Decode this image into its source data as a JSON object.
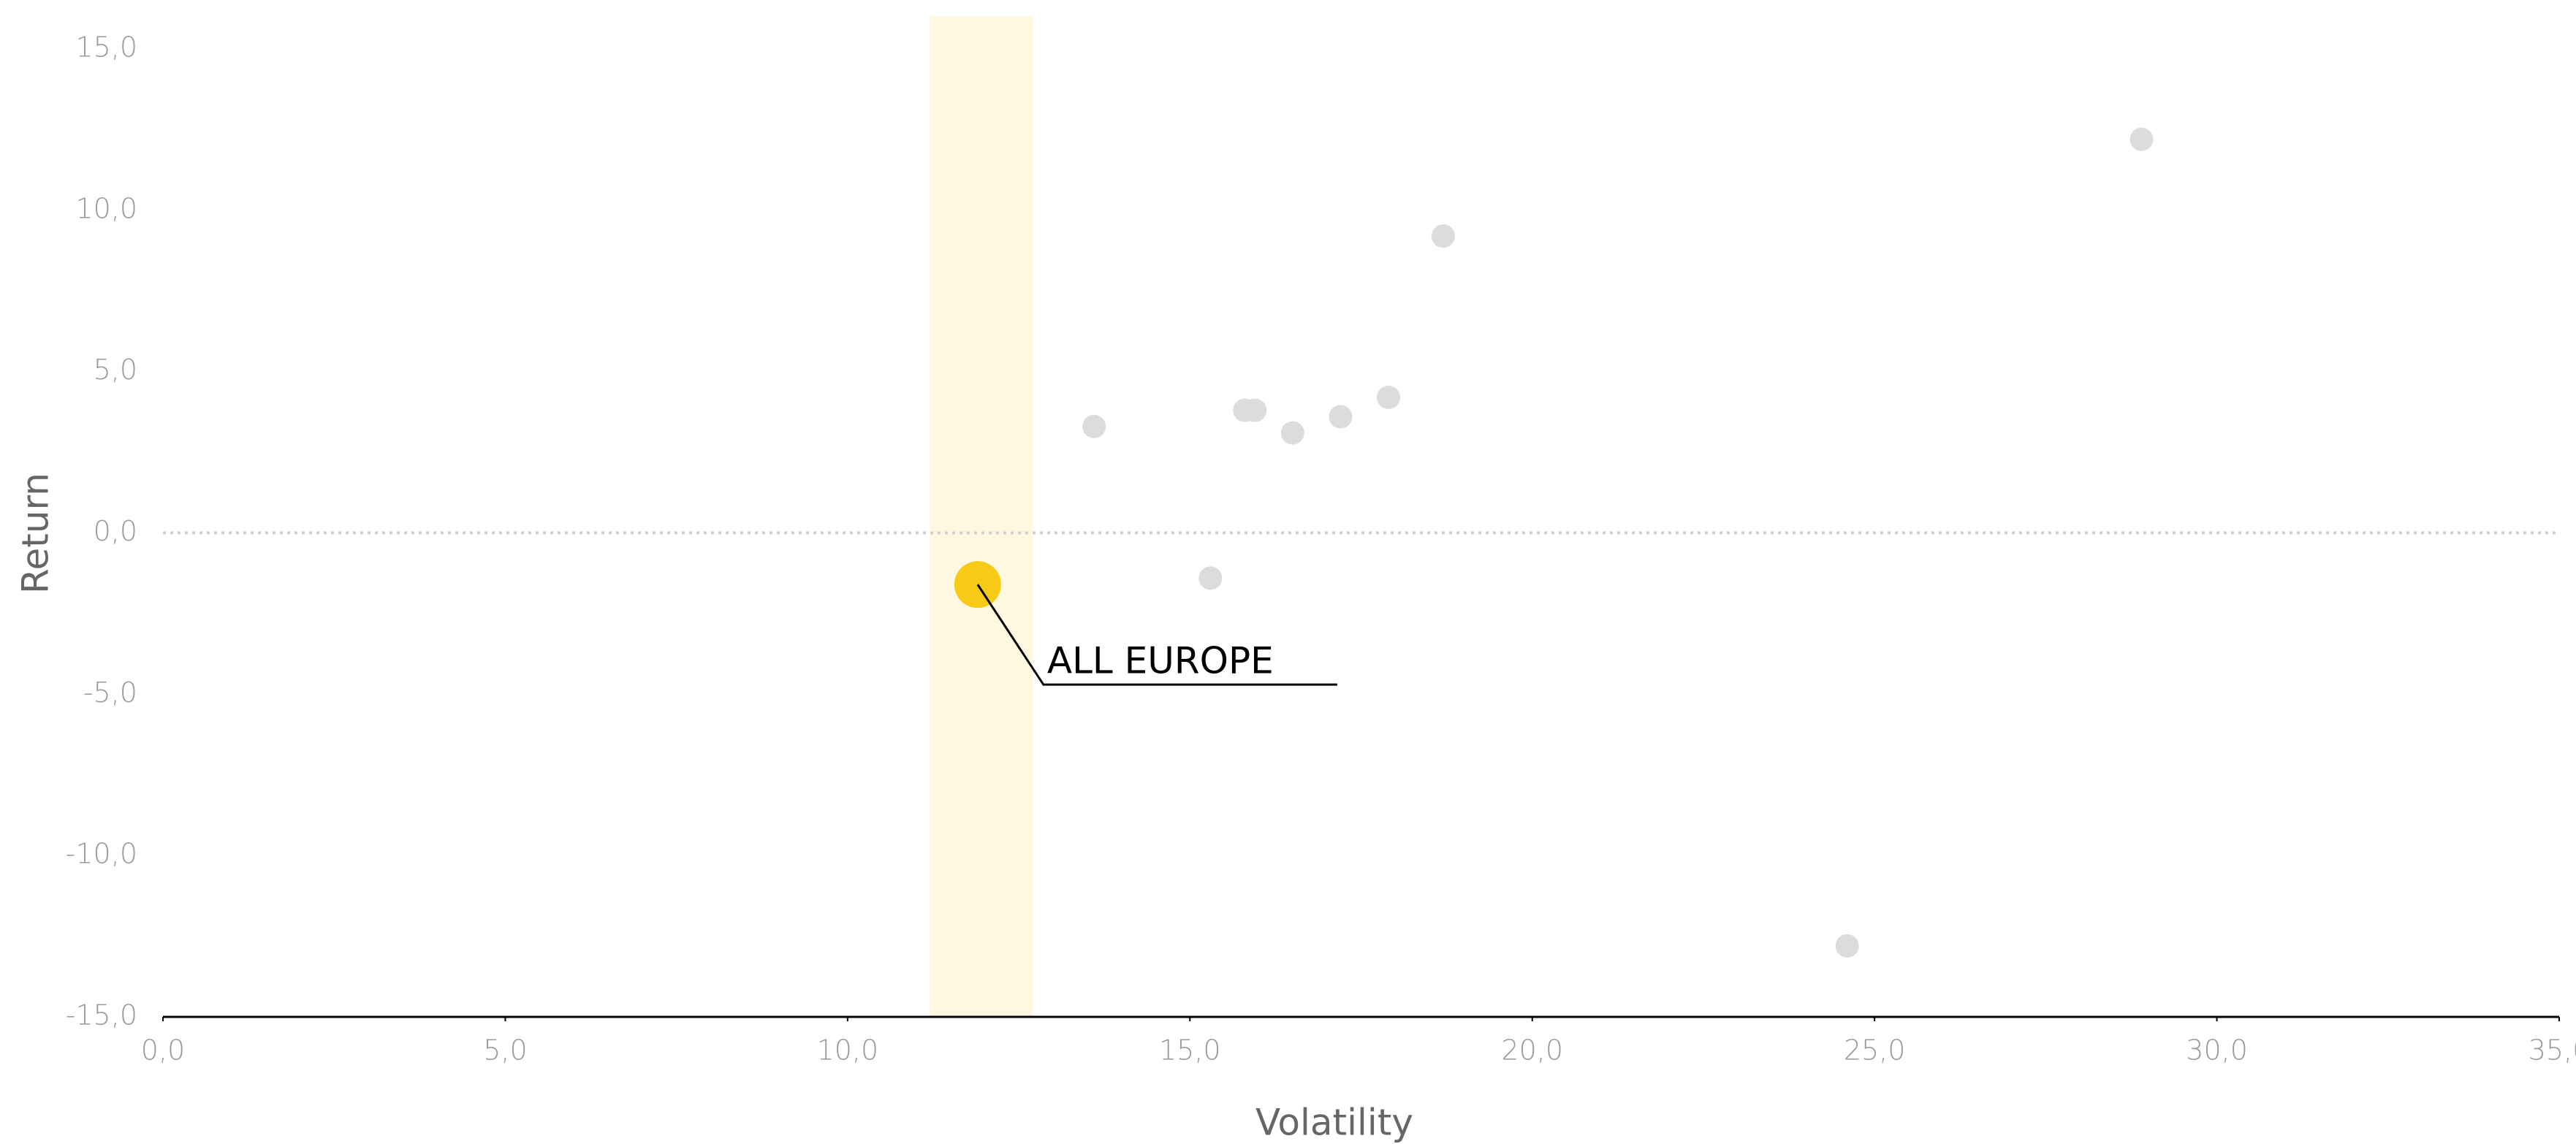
{
  "chart_data": {
    "type": "scatter",
    "x_label": "Volatility",
    "y_label": "Return",
    "xlim": [
      0,
      35
    ],
    "ylim": [
      -15,
      15
    ],
    "xticks": [
      {
        "value": 0,
        "label": "0,0"
      },
      {
        "value": 5,
        "label": "5,0"
      },
      {
        "value": 10,
        "label": "10,0"
      },
      {
        "value": 15,
        "label": "15,0"
      },
      {
        "value": 20,
        "label": "20,0"
      },
      {
        "value": 25,
        "label": "25,0"
      },
      {
        "value": 30,
        "label": "30,0"
      },
      {
        "value": 35,
        "label": "35,0"
      }
    ],
    "yticks": [
      {
        "value": -15,
        "label": "-15,0"
      },
      {
        "value": -10,
        "label": "-10,0"
      },
      {
        "value": -5,
        "label": "-5,0"
      },
      {
        "value": 0,
        "label": "0,0"
      },
      {
        "value": 5,
        "label": "5,0"
      },
      {
        "value": 10,
        "label": "10,0"
      },
      {
        "value": 15,
        "label": "15,0"
      }
    ],
    "highlight_band": [
      11.2,
      12.7
    ],
    "band_color": "#fff8e1",
    "zero_line": true,
    "series": [
      {
        "color": "#dcdcdc",
        "x": [
          13.6,
          15.3,
          15.8,
          15.95,
          16.5,
          17.2,
          17.9,
          18.7,
          24.6,
          28.9
        ],
        "values": [
          3.3,
          -1.4,
          3.8,
          3.8,
          3.1,
          3.6,
          4.2,
          9.2,
          -12.8,
          12.2
        ]
      },
      {
        "name": "ALL EUROPE",
        "color": "#f7cb15",
        "x": [
          11.9
        ],
        "values": [
          -1.6
        ],
        "annotate": true
      }
    ]
  }
}
